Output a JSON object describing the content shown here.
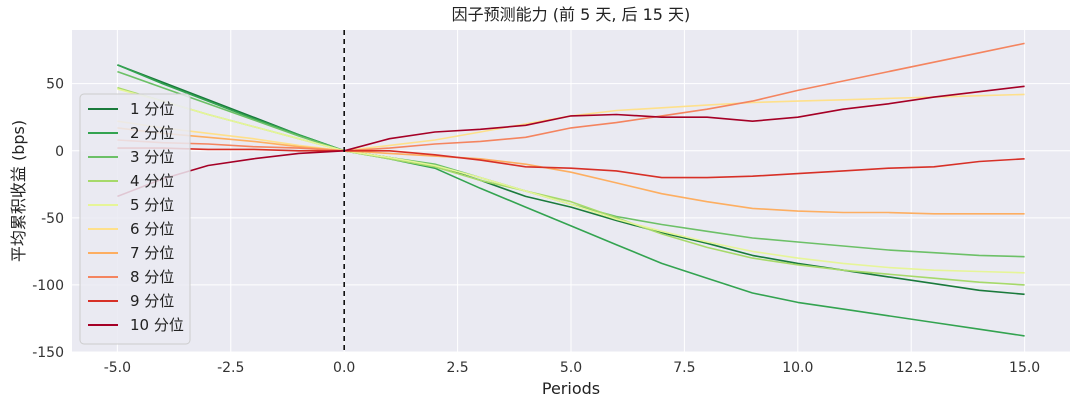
{
  "chart_data": {
    "type": "line",
    "title": "因子预测能力 (前 5 天, 后 15 天)",
    "xlabel": "Periods",
    "ylabel": "平均累积收益 (bps)",
    "xlim": [
      -6.0,
      16.0
    ],
    "ylim": [
      -150,
      90
    ],
    "x_ticks": [
      -5.0,
      -2.5,
      0.0,
      2.5,
      5.0,
      7.5,
      10.0,
      12.5,
      15.0
    ],
    "x_tick_labels": [
      "-5.0",
      "-2.5",
      "0.0",
      "2.5",
      "5.0",
      "7.5",
      "10.0",
      "12.5",
      "15.0"
    ],
    "y_ticks": [
      50,
      0,
      -50,
      -100,
      -150
    ],
    "y_tick_labels": [
      "50",
      "0",
      "-50",
      "-100",
      "-150"
    ],
    "vline": 0,
    "grid": true,
    "legend_position": "left",
    "background": "#eaeaf2",
    "x": [
      -5,
      -4,
      -3,
      -2,
      -1,
      0,
      1,
      2,
      3,
      4,
      5,
      6,
      7,
      8,
      9,
      10,
      11,
      12,
      13,
      14,
      15
    ],
    "series": [
      {
        "name": "1 分位",
        "color": "#1a7a3c",
        "values": [
          64,
          51,
          38,
          25,
          12,
          0,
          -5,
          -11,
          -22,
          -34,
          -42,
          -52,
          -61,
          -69,
          -78,
          -84,
          -89,
          -94,
          -99,
          -104,
          -107
        ]
      },
      {
        "name": "2 分位",
        "color": "#33a350",
        "values": [
          64,
          50,
          37,
          24,
          12,
          0,
          -6,
          -13,
          -28,
          -42,
          -56,
          -70,
          -84,
          -95,
          -106,
          -113,
          -118,
          -123,
          -128,
          -133,
          -138
        ]
      },
      {
        "name": "3 分位",
        "color": "#6cc067",
        "values": [
          59,
          47,
          35,
          23,
          11,
          0,
          -5,
          -10,
          -20,
          -30,
          -40,
          -49,
          -55,
          -60,
          -65,
          -68,
          -71,
          -74,
          -76,
          -78,
          -79
        ]
      },
      {
        "name": "4 分位",
        "color": "#a6d96a",
        "values": [
          47,
          37,
          27,
          18,
          9,
          0,
          -6,
          -12,
          -22,
          -30,
          -38,
          -50,
          -62,
          -72,
          -80,
          -85,
          -89,
          -92,
          -95,
          -98,
          -100
        ]
      },
      {
        "name": "5 分位",
        "color": "#e6f598",
        "values": [
          46,
          37,
          27,
          18,
          9,
          0,
          -5,
          -11,
          -20,
          -30,
          -40,
          -51,
          -60,
          -68,
          -75,
          -80,
          -84,
          -87,
          -89,
          -90,
          -91
        ]
      },
      {
        "name": "6 分位",
        "color": "#fee08b",
        "values": [
          22,
          17,
          13,
          9,
          4,
          0,
          4,
          8,
          14,
          20,
          26,
          30,
          32,
          34,
          36,
          37,
          38,
          39,
          40,
          41,
          42
        ]
      },
      {
        "name": "7 分位",
        "color": "#fdae61",
        "values": [
          17,
          13,
          10,
          7,
          3,
          0,
          -2,
          -4,
          -6,
          -10,
          -16,
          -24,
          -32,
          -38,
          -43,
          -45,
          -46,
          -46,
          -47,
          -47,
          -47
        ]
      },
      {
        "name": "8 分位",
        "color": "#f4845f",
        "values": [
          8,
          6,
          5,
          3,
          2,
          0,
          2,
          5,
          7,
          10,
          17,
          21,
          26,
          31,
          37,
          45,
          52,
          59,
          66,
          73,
          80
        ]
      },
      {
        "name": "9 分位",
        "color": "#d73027",
        "values": [
          2,
          2,
          1,
          1,
          0,
          0,
          0,
          -3,
          -7,
          -12,
          -13,
          -15,
          -20,
          -20,
          -19,
          -17,
          -15,
          -13,
          -12,
          -8,
          -6
        ]
      },
      {
        "name": "10 分位",
        "color": "#a50026",
        "values": [
          -34,
          -21,
          -11,
          -6,
          -2,
          0,
          9,
          14,
          16,
          19,
          26,
          27,
          25,
          25,
          22,
          25,
          31,
          35,
          40,
          44,
          48
        ]
      }
    ]
  }
}
